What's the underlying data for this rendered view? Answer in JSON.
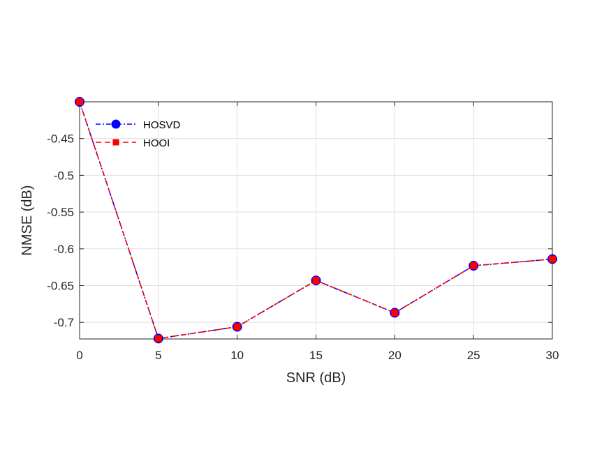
{
  "chart_data": {
    "type": "line",
    "title": "",
    "xlabel": "SNR (dB)",
    "ylabel": "NMSE (dB)",
    "xlim": [
      0,
      30
    ],
    "ylim": [
      -0.7226,
      -0.4
    ],
    "xticks": [
      0,
      5,
      10,
      15,
      20,
      25,
      30
    ],
    "xtick_labels": [
      "0",
      "5",
      "10",
      "15",
      "20",
      "25",
      "30"
    ],
    "yticks": [
      -0.7,
      -0.65,
      -0.6,
      -0.55,
      -0.5,
      -0.45
    ],
    "ytick_labels": [
      "-0.7",
      "-0.65",
      "-0.6",
      "-0.55",
      "-0.5",
      "-0.45"
    ],
    "grid": true,
    "legend": "top-left",
    "x": [
      0,
      5,
      10,
      15,
      20,
      25,
      30
    ],
    "series": [
      {
        "name": "HOSVD",
        "color": "#0000ff",
        "marker": "circle",
        "linestyle": "dash-dot",
        "values": [
          -0.4,
          -0.722,
          -0.706,
          -0.643,
          -0.687,
          -0.623,
          -0.614
        ]
      },
      {
        "name": "HOOI",
        "color": "#ff0000",
        "marker": "square",
        "linestyle": "dashed",
        "values": [
          -0.4,
          -0.722,
          -0.706,
          -0.643,
          -0.687,
          -0.623,
          -0.614
        ]
      }
    ]
  }
}
